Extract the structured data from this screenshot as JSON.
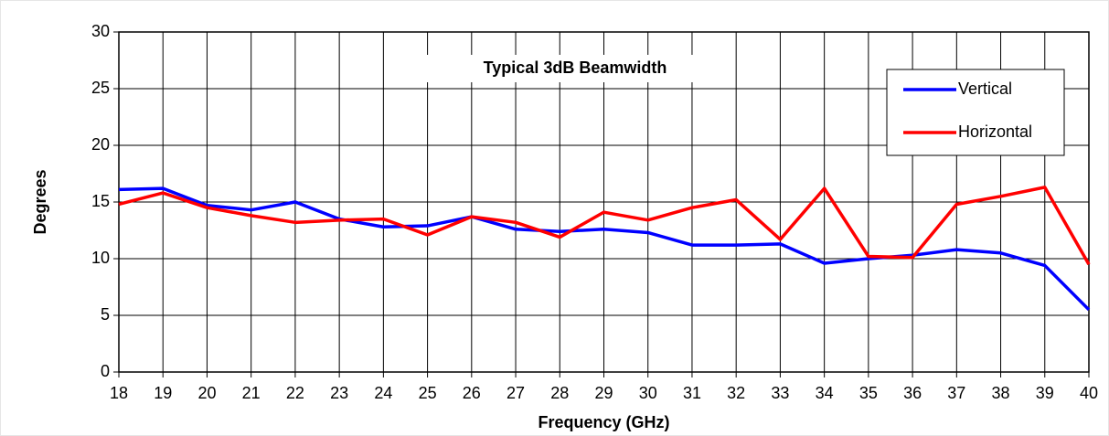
{
  "chart_data": {
    "type": "line",
    "title": "Typical 3dB Beamwidth",
    "x_label": "Frequency (GHz)",
    "y_label": "Degrees",
    "x": [
      18,
      19,
      20,
      21,
      22,
      23,
      24,
      25,
      26,
      27,
      28,
      29,
      30,
      31,
      32,
      33,
      34,
      35,
      36,
      37,
      38,
      39,
      40
    ],
    "series": [
      {
        "name": "Vertical",
        "color": "#0000ff",
        "values": [
          16.1,
          16.2,
          14.7,
          14.3,
          15.0,
          13.5,
          12.8,
          12.9,
          13.7,
          12.6,
          12.4,
          12.6,
          12.3,
          11.2,
          11.2,
          11.3,
          9.6,
          10.0,
          10.3,
          10.8,
          10.5,
          9.4,
          5.5
        ]
      },
      {
        "name": "Horizontal",
        "color": "#ff0000",
        "values": [
          14.8,
          15.8,
          14.5,
          13.8,
          13.2,
          13.4,
          13.5,
          12.1,
          13.7,
          13.2,
          11.9,
          14.1,
          13.4,
          14.5,
          15.2,
          11.7,
          16.2,
          10.2,
          10.1,
          14.8,
          15.5,
          16.3,
          9.5
        ]
      }
    ],
    "xlim": [
      18,
      40
    ],
    "xticks": [
      18,
      19,
      20,
      21,
      22,
      23,
      24,
      25,
      26,
      27,
      28,
      29,
      30,
      31,
      32,
      33,
      34,
      35,
      36,
      37,
      38,
      39,
      40
    ],
    "ylim": [
      0,
      30
    ],
    "yticks": [
      0,
      5,
      10,
      15,
      20,
      25,
      30
    ],
    "grid": true,
    "legend": "upper right"
  }
}
